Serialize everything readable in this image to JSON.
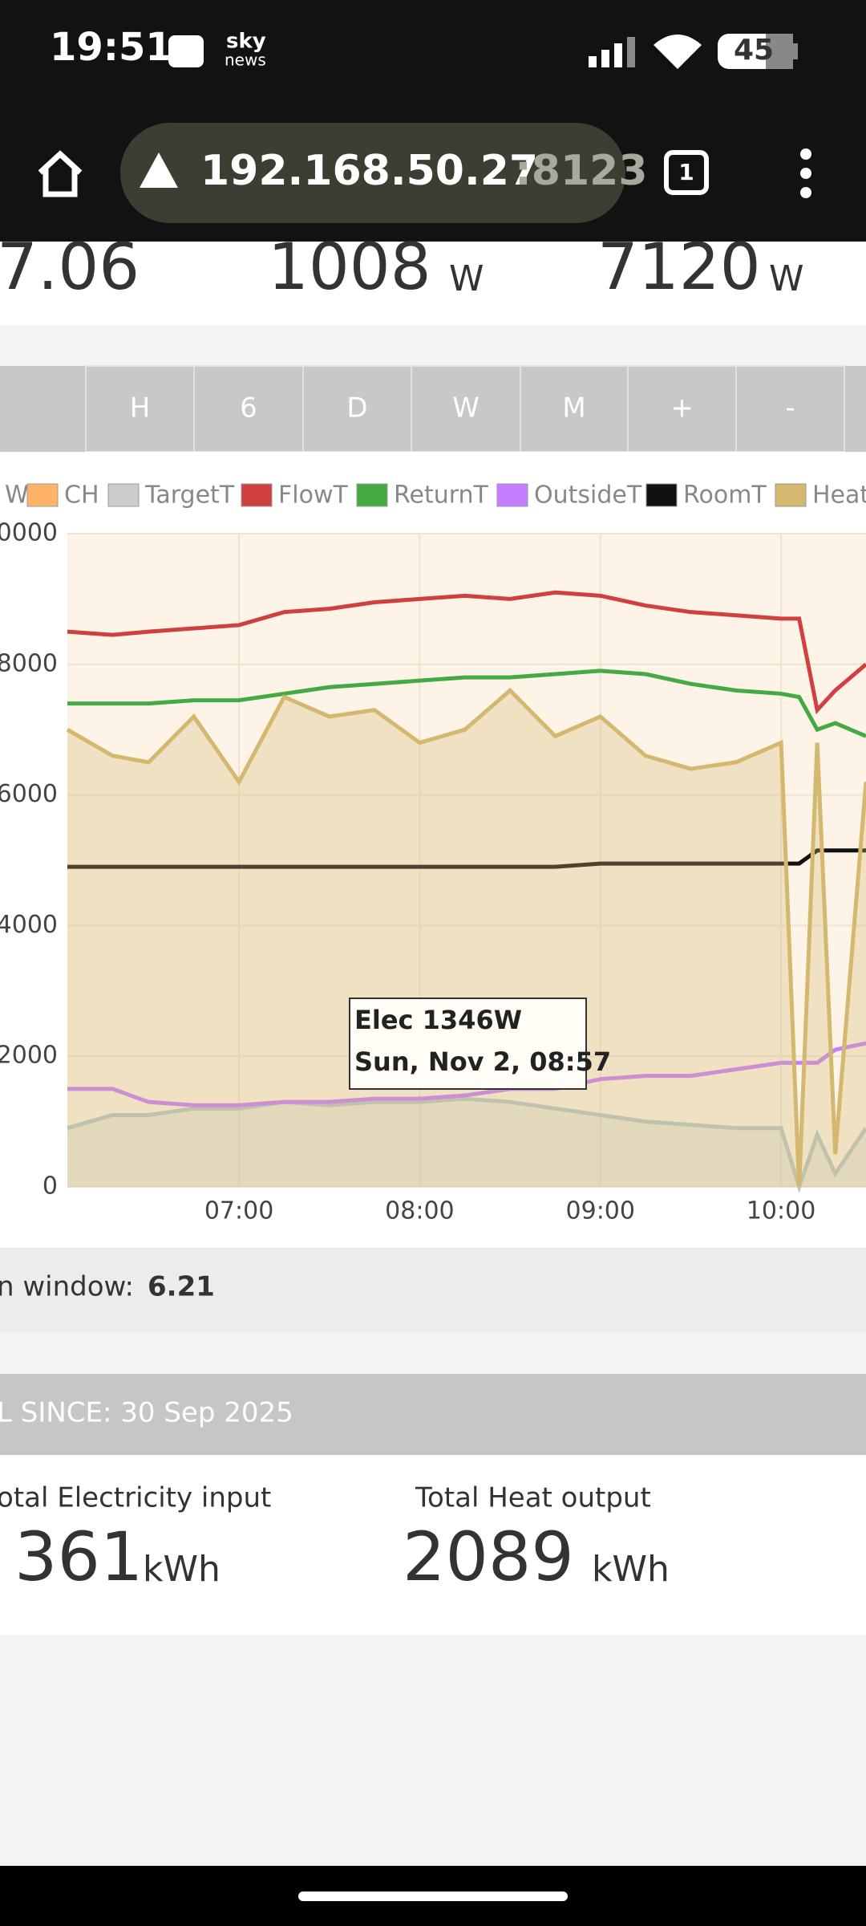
{
  "status_bar": {
    "time": "19:51",
    "app": "sky",
    "app_sub": "news",
    "battery": "45"
  },
  "browser": {
    "host": "192.168.50.27",
    "port": ":8123",
    "tabs": "1"
  },
  "stats": [
    {
      "value": "7.06"
    },
    {
      "value": "1008",
      "unit": "W"
    },
    {
      "value": "7120",
      "unit": "W"
    }
  ],
  "buttons": [
    "H",
    "6",
    "D",
    "W",
    "M",
    "+",
    "-"
  ],
  "chart_data": {
    "type": "line",
    "x": [
      6.05,
      6.3,
      6.5,
      6.75,
      7.0,
      7.25,
      7.5,
      7.75,
      8.0,
      8.25,
      8.5,
      8.75,
      9.0,
      9.25,
      9.5,
      9.75,
      10.0,
      10.1,
      10.2,
      10.3,
      10.47
    ],
    "xlim": [
      6.05,
      10.47
    ],
    "xticks": [
      {
        "value": 7,
        "label": "07:00"
      },
      {
        "value": 8,
        "label": "08:00"
      },
      {
        "value": 9,
        "label": "09:00"
      },
      {
        "value": 10,
        "label": "10:00"
      }
    ],
    "ylim": [
      0,
      10000
    ],
    "yticks": [
      0,
      2000,
      4000,
      6000,
      8000,
      10000
    ],
    "grid": true,
    "series": [
      {
        "name": "W",
        "color": "#b9c6c8",
        "area": true,
        "values": [
          900,
          1100,
          1100,
          1200,
          1200,
          1300,
          1250,
          1300,
          1300,
          1350,
          1300,
          1200,
          1100,
          1000,
          950,
          900,
          900,
          0,
          800,
          200,
          900
        ]
      },
      {
        "name": "CH",
        "color": "#ffb366"
      },
      {
        "name": "TargetT",
        "color": "#cccccc"
      },
      {
        "name": "FlowT",
        "color": "#d04040",
        "values": [
          8500,
          8450,
          8500,
          8550,
          8600,
          8800,
          8850,
          8950,
          9000,
          9050,
          9000,
          9100,
          9050,
          8900,
          8800,
          8750,
          8700,
          8700,
          7300,
          7600,
          8000
        ]
      },
      {
        "name": "ReturnT",
        "color": "#44aa44",
        "values": [
          7400,
          7400,
          7400,
          7450,
          7450,
          7550,
          7650,
          7700,
          7750,
          7800,
          7800,
          7850,
          7900,
          7850,
          7700,
          7600,
          7550,
          7500,
          7000,
          7100,
          6900
        ]
      },
      {
        "name": "OutsideT",
        "color": "#c77dff",
        "values": [
          1500,
          1500,
          1300,
          1250,
          1250,
          1300,
          1300,
          1350,
          1350,
          1400,
          1500,
          1500,
          1650,
          1700,
          1700,
          1800,
          1900,
          1900,
          1900,
          2100,
          2200
        ]
      },
      {
        "name": "RoomT",
        "color": "#111111",
        "values": [
          4900,
          4900,
          4900,
          4900,
          4900,
          4900,
          4900,
          4900,
          4900,
          4900,
          4900,
          4900,
          4950,
          4950,
          4950,
          4950,
          4950,
          4950,
          5150,
          5150,
          5150
        ]
      },
      {
        "name": "Heat",
        "color": "#d4b870",
        "area": true,
        "values": [
          7000,
          6600,
          6500,
          7200,
          6200,
          7500,
          7200,
          7300,
          6800,
          7000,
          7600,
          6900,
          7200,
          6600,
          6400,
          6500,
          6800,
          0,
          6800,
          500,
          6200
        ]
      }
    ],
    "tooltip": {
      "title": "Elec 1346W",
      "date": "Sun, Nov 2, 08:57"
    }
  },
  "window": {
    "label": "n window:",
    "value": "6.21"
  },
  "totals": {
    "header": "L SINCE: 30 Sep 2025",
    "items": [
      {
        "label": "otal Electricity input",
        "value": "361",
        "unit": "kWh"
      },
      {
        "label": "Total Heat output",
        "value": "2089",
        "unit": "kWh"
      }
    ]
  }
}
